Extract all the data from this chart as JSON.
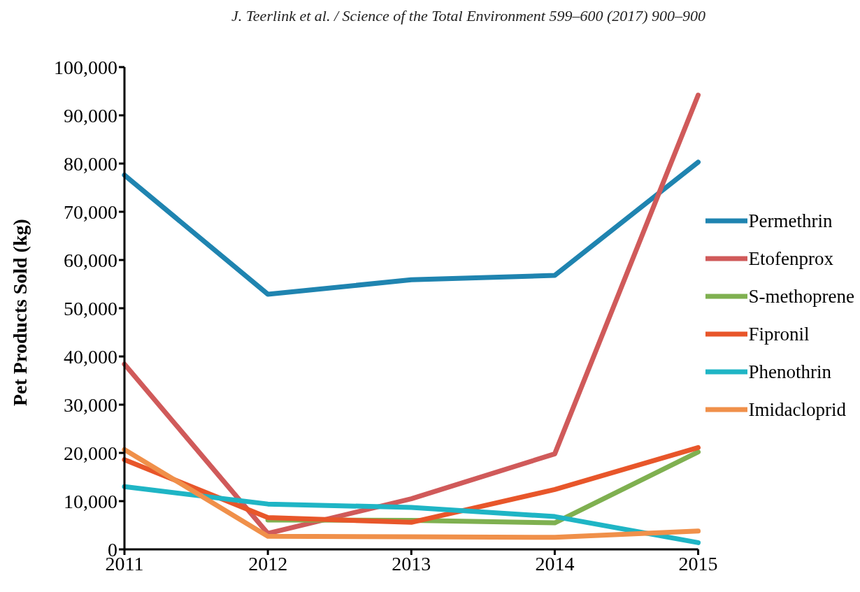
{
  "chart_data": {
    "type": "line",
    "annotations": [
      "J. Teerlink et al. / Science of the Total Environment 599–600 (2017) 900–900"
    ],
    "ylabel": "Pet Products Sold (kg)",
    "categories": [
      "2011",
      "2012",
      "2013",
      "2014",
      "2015"
    ],
    "series": [
      {
        "name": "Permethrin",
        "color": "#1f84b0",
        "values": [
          77600,
          52900,
          55900,
          56800,
          80300
        ]
      },
      {
        "name": "Etofenprox",
        "color": "#d05a5a",
        "values": [
          38400,
          3300,
          10500,
          19800,
          94200
        ]
      },
      {
        "name": "S-methoprene",
        "color": "#7fb050",
        "values": [
          null,
          6100,
          6000,
          5500,
          20200
        ]
      },
      {
        "name": "Fipronil",
        "color": "#e8562a",
        "values": [
          18600,
          6600,
          5600,
          12400,
          21100
        ]
      },
      {
        "name": "Phenothrin",
        "color": "#1fb5c5",
        "values": [
          13000,
          9400,
          8700,
          6800,
          1400
        ]
      },
      {
        "name": "Imidacloprid",
        "color": "#f0904a",
        "values": [
          20700,
          2700,
          2600,
          2500,
          3800
        ]
      }
    ],
    "ylim": [
      0,
      100000
    ],
    "yticks": [
      {
        "value": 0,
        "label": "0"
      },
      {
        "value": 10000,
        "label": "10,000"
      },
      {
        "value": 20000,
        "label": "20,000"
      },
      {
        "value": 30000,
        "label": "30,000"
      },
      {
        "value": 40000,
        "label": "40,000"
      },
      {
        "value": 50000,
        "label": "50,000"
      },
      {
        "value": 60000,
        "label": "60,000"
      },
      {
        "value": 70000,
        "label": "70,000"
      },
      {
        "value": 80000,
        "label": "80,000"
      },
      {
        "value": 90000,
        "label": "90,000"
      },
      {
        "value": 100000,
        "label": "100,000"
      }
    ],
    "grid": false,
    "legend": "right",
    "marker": "none",
    "line_style": "solid"
  }
}
